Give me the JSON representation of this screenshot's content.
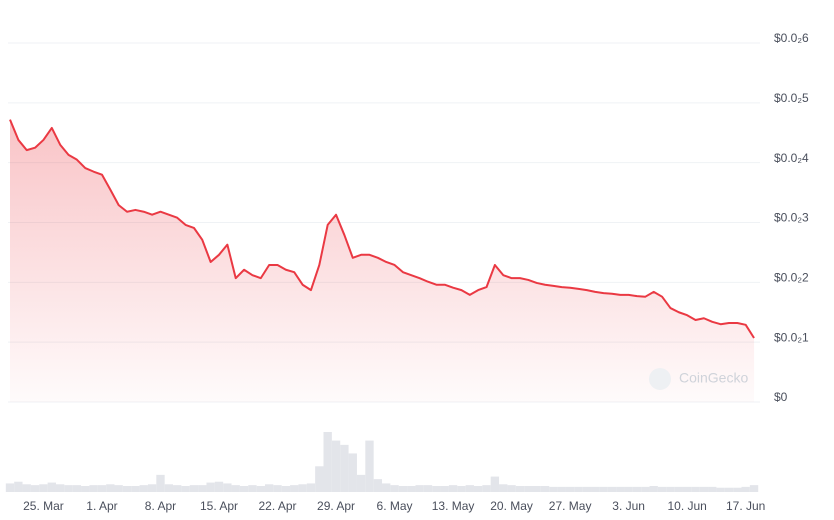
{
  "chart_data": {
    "type": "line",
    "x": [
      "21. Mar",
      "22. Mar",
      "23. Mar",
      "24. Mar",
      "25. Mar",
      "26. Mar",
      "27. Mar",
      "28. Mar",
      "29. Mar",
      "30. Mar",
      "31. Mar",
      "1. Apr",
      "2. Apr",
      "3. Apr",
      "4. Apr",
      "5. Apr",
      "6. Apr",
      "7. Apr",
      "8. Apr",
      "9. Apr",
      "10. Apr",
      "11. Apr",
      "12. Apr",
      "13. Apr",
      "14. Apr",
      "15. Apr",
      "16. Apr",
      "17. Apr",
      "18. Apr",
      "19. Apr",
      "20. Apr",
      "21. Apr",
      "22. Apr",
      "23. Apr",
      "24. Apr",
      "25. Apr",
      "26. Apr",
      "27. Apr",
      "28. Apr",
      "29. Apr",
      "30. Apr",
      "1. May",
      "2. May",
      "3. May",
      "4. May",
      "5. May",
      "6. May",
      "7. May",
      "8. May",
      "9. May",
      "10. May",
      "11. May",
      "12. May",
      "13. May",
      "14. May",
      "15. May",
      "16. May",
      "17. May",
      "18. May",
      "19. May",
      "20. May",
      "21. May",
      "22. May",
      "23. May",
      "24. May",
      "25. May",
      "26. May",
      "27. May",
      "28. May",
      "29. May",
      "30. May",
      "31. May",
      "1. Jun",
      "2. Jun",
      "3. Jun",
      "4. Jun",
      "5. Jun",
      "6. Jun",
      "7. Jun",
      "8. Jun",
      "9. Jun",
      "10. Jun",
      "11. Jun",
      "12. Jun",
      "13. Jun",
      "14. Jun",
      "15. Jun",
      "16. Jun",
      "17. Jun",
      "18. Jun"
    ],
    "series": [
      {
        "color": "#ea3943",
        "values": [
          0.00472,
          0.00438,
          0.00421,
          0.00425,
          0.00438,
          0.00458,
          0.0043,
          0.00413,
          0.00405,
          0.00391,
          0.00385,
          0.0038,
          0.00355,
          0.00329,
          0.00318,
          0.00321,
          0.00318,
          0.00313,
          0.00318,
          0.00313,
          0.00308,
          0.00296,
          0.00291,
          0.00271,
          0.00234,
          0.00246,
          0.00263,
          0.00207,
          0.00221,
          0.00212,
          0.00207,
          0.00229,
          0.00229,
          0.00221,
          0.00217,
          0.00196,
          0.00187,
          0.00229,
          0.00296,
          0.00313,
          0.00279,
          0.00241,
          0.00246,
          0.00246,
          0.00241,
          0.00234,
          0.00229,
          0.00217,
          0.00212,
          0.00207,
          0.00201,
          0.00196,
          0.00196,
          0.00191,
          0.00187,
          0.00179,
          0.00187,
          0.00192,
          0.00229,
          0.00212,
          0.00207,
          0.00207,
          0.00204,
          0.00199,
          0.00196,
          0.00194,
          0.00192,
          0.00191,
          0.00189,
          0.00187,
          0.00184,
          0.00182,
          0.00181,
          0.00179,
          0.00179,
          0.00177,
          0.00176,
          0.00184,
          0.00176,
          0.00157,
          0.0015,
          0.00145,
          0.00137,
          0.0014,
          0.00134,
          0.0013,
          0.00132,
          0.00132,
          0.00129,
          0.00107
        ]
      }
    ],
    "volume": {
      "color": "#e3e5ea",
      "values": [
        10,
        12,
        9,
        8,
        9,
        11,
        9,
        8,
        8,
        7,
        8,
        8,
        9,
        8,
        7,
        7,
        8,
        9,
        20,
        9,
        8,
        7,
        8,
        8,
        11,
        12,
        10,
        8,
        7,
        8,
        7,
        9,
        8,
        7,
        8,
        9,
        10,
        30,
        70,
        60,
        55,
        45,
        20,
        60,
        15,
        10,
        8,
        7,
        7,
        8,
        8,
        7,
        7,
        8,
        7,
        8,
        7,
        8,
        18,
        9,
        8,
        7,
        7,
        7,
        7,
        6,
        6,
        6,
        6,
        6,
        6,
        6,
        6,
        6,
        6,
        6,
        6,
        7,
        6,
        6,
        6,
        6,
        6,
        6,
        6,
        5,
        5,
        5,
        6,
        8
      ]
    },
    "ylim": [
      0,
      0.006
    ],
    "yticks": [
      {
        "value": 0,
        "label": "$0"
      },
      {
        "value": 0.001,
        "label": "$0.0₂1"
      },
      {
        "value": 0.002,
        "label": "$0.0₂2"
      },
      {
        "value": 0.003,
        "label": "$0.0₂3"
      },
      {
        "value": 0.004,
        "label": "$0.0₂4"
      },
      {
        "value": 0.005,
        "label": "$0.0₂5"
      },
      {
        "value": 0.006,
        "label": "$0.0₂6"
      }
    ],
    "xticks": [
      "25. Mar",
      "1. Apr",
      "8. Apr",
      "15. Apr",
      "22. Apr",
      "29. Apr",
      "6. May",
      "13. May",
      "20. May",
      "27. May",
      "3. Jun",
      "10. Jun",
      "17. Jun"
    ],
    "grid": true,
    "watermark": "CoinGecko"
  }
}
